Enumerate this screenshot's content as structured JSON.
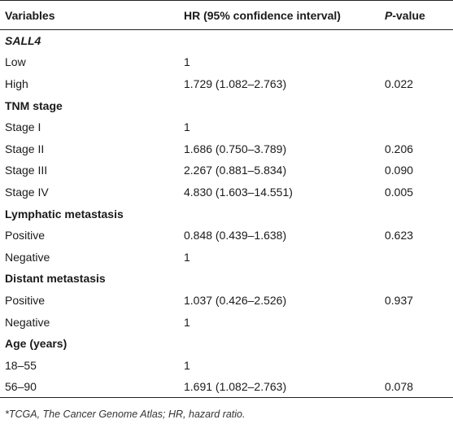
{
  "table": {
    "headers": {
      "col1": "Variables",
      "col2": "HR (95% confidence interval)",
      "col3_italic": "P",
      "col3_rest": "-value"
    },
    "rows": [
      {
        "type": "group",
        "label": "SALL4",
        "italic": true,
        "hr": "",
        "p": ""
      },
      {
        "type": "row",
        "label": "Low",
        "hr": "1",
        "p": ""
      },
      {
        "type": "row",
        "label": "High",
        "hr": "1.729 (1.082–2.763)",
        "p": "0.022"
      },
      {
        "type": "group",
        "label": "TNM stage",
        "italic": false,
        "hr": "",
        "p": ""
      },
      {
        "type": "row",
        "label": "Stage I",
        "hr": "1",
        "p": ""
      },
      {
        "type": "row",
        "label": "Stage II",
        "hr": "1.686 (0.750–3.789)",
        "p": "0.206"
      },
      {
        "type": "row",
        "label": "Stage III",
        "hr": "2.267 (0.881–5.834)",
        "p": "0.090"
      },
      {
        "type": "row",
        "label": "Stage IV",
        "hr": "4.830 (1.603–14.551)",
        "p": "0.005"
      },
      {
        "type": "group",
        "label": "Lymphatic metastasis",
        "italic": false,
        "hr": "",
        "p": ""
      },
      {
        "type": "row",
        "label": "Positive",
        "hr": "0.848 (0.439–1.638)",
        "p": "0.623"
      },
      {
        "type": "row",
        "label": "Negative",
        "hr": "1",
        "p": ""
      },
      {
        "type": "group",
        "label": "Distant metastasis",
        "italic": false,
        "hr": "",
        "p": ""
      },
      {
        "type": "row",
        "label": "Positive",
        "hr": "1.037 (0.426–2.526)",
        "p": "0.937"
      },
      {
        "type": "row",
        "label": "Negative",
        "hr": "1",
        "p": ""
      },
      {
        "type": "group",
        "label": "Age (years)",
        "italic": false,
        "hr": "",
        "p": ""
      },
      {
        "type": "row",
        "label": "18–55",
        "hr": "1",
        "p": ""
      },
      {
        "type": "row",
        "label": "56–90",
        "hr": "1.691 (1.082–2.763)",
        "p": "0.078"
      }
    ]
  },
  "footnote": "*TCGA, The Cancer Genome Atlas; HR, hazard ratio."
}
